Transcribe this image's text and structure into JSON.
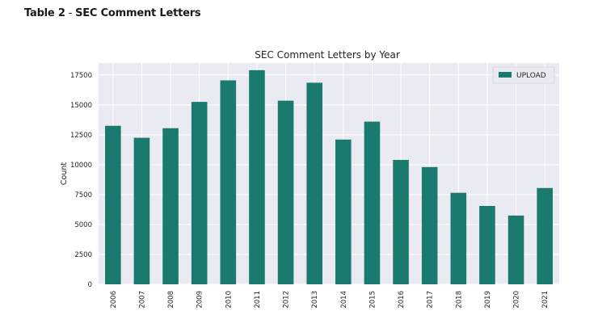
{
  "page": {
    "heading_prefix": "Table 2",
    "heading_separator": " - ",
    "heading_title": "SEC Comment Letters"
  },
  "colors": {
    "bar": "#1a7a6e",
    "plot_background": "#eaeaf2",
    "grid": "#ffffff",
    "text": "#262626"
  },
  "chart_data": {
    "type": "bar",
    "title": "SEC Comment Letters by Year",
    "xlabel": "",
    "ylabel": "Count",
    "ylim": [
      0,
      18500
    ],
    "yticks": [
      0,
      2500,
      5000,
      7500,
      10000,
      12500,
      15000,
      17500
    ],
    "categories": [
      "2006",
      "2007",
      "2008",
      "2009",
      "2010",
      "2011",
      "2012",
      "2013",
      "2014",
      "2015",
      "2016",
      "2017",
      "2018",
      "2019",
      "2020",
      "2021"
    ],
    "series": [
      {
        "name": "UPLOAD",
        "values": [
          13250,
          12250,
          13050,
          15250,
          17050,
          17900,
          15350,
          16850,
          12100,
          13600,
          10400,
          9800,
          7650,
          6550,
          5750,
          8050
        ]
      }
    ],
    "grid": true,
    "legend_position": "top-right",
    "x_tick_rotation": "vertical"
  }
}
